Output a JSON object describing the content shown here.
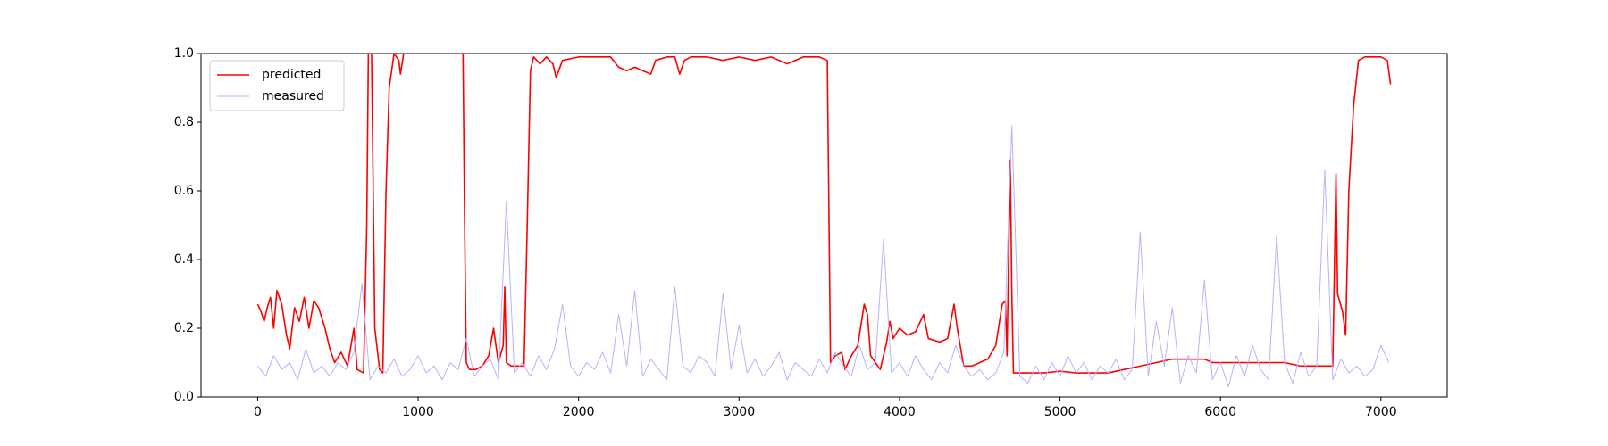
{
  "chart_data": {
    "type": "line",
    "xlim": [
      -353,
      7413
    ],
    "xticks": [
      0,
      1000,
      2000,
      3000,
      4000,
      5000,
      6000,
      7000
    ],
    "ylim": [
      0,
      1
    ],
    "yticks": [
      {
        "value": 0,
        "label": "0.0"
      },
      0.2,
      0.4,
      0.6,
      0.8,
      {
        "value": 1,
        "label": "1.0"
      }
    ],
    "legend": "upper left",
    "series": [
      {
        "name": "predicted",
        "color": "#ff0000",
        "x": [
          0,
          20,
          40,
          60,
          80,
          100,
          120,
          150,
          180,
          200,
          230,
          260,
          290,
          320,
          350,
          380,
          420,
          450,
          480,
          520,
          560,
          600,
          620,
          660,
          680,
          690,
          710,
          730,
          760,
          780,
          800,
          820,
          850,
          880,
          890,
          910,
          1280,
          1290,
          1300,
          1320,
          1360,
          1400,
          1440,
          1470,
          1500,
          1530,
          1540,
          1550,
          1580,
          1620,
          1660,
          1680,
          1700,
          1720,
          1760,
          1800,
          1840,
          1860,
          1900,
          2000,
          2100,
          2200,
          2250,
          2300,
          2350,
          2400,
          2450,
          2480,
          2550,
          2600,
          2630,
          2660,
          2700,
          2800,
          2900,
          3000,
          3100,
          3200,
          3300,
          3400,
          3500,
          3550,
          3570,
          3600,
          3640,
          3660,
          3700,
          3740,
          3780,
          3800,
          3820,
          3850,
          3880,
          3920,
          3940,
          3960,
          4000,
          4050,
          4100,
          4150,
          4180,
          4250,
          4300,
          4340,
          4360,
          4400,
          4450,
          4500,
          4550,
          4600,
          4640,
          4660,
          4670,
          4690,
          4700,
          4710,
          4800,
          4900,
          5000,
          5100,
          5200,
          5300,
          5400,
          5500,
          5600,
          5700,
          5800,
          5900,
          5950,
          6000,
          6100,
          6200,
          6300,
          6400,
          6500,
          6600,
          6700,
          6720,
          6730,
          6760,
          6780,
          6800,
          6830,
          6860,
          6900,
          6950,
          7000,
          7040,
          7060
        ],
        "values": [
          0.27,
          0.25,
          0.22,
          0.26,
          0.29,
          0.2,
          0.31,
          0.27,
          0.18,
          0.14,
          0.26,
          0.22,
          0.29,
          0.2,
          0.28,
          0.26,
          0.2,
          0.14,
          0.1,
          0.13,
          0.09,
          0.2,
          0.08,
          0.07,
          0.5,
          1.0,
          1.0,
          0.2,
          0.08,
          0.07,
          0.6,
          0.9,
          1.0,
          0.98,
          0.94,
          1.0,
          1.0,
          0.5,
          0.1,
          0.08,
          0.08,
          0.09,
          0.12,
          0.2,
          0.1,
          0.15,
          0.32,
          0.1,
          0.09,
          0.09,
          0.09,
          0.5,
          0.95,
          0.99,
          0.97,
          0.99,
          0.97,
          0.93,
          0.98,
          0.99,
          0.99,
          0.99,
          0.96,
          0.95,
          0.96,
          0.95,
          0.94,
          0.98,
          0.99,
          0.99,
          0.94,
          0.98,
          0.99,
          0.99,
          0.98,
          0.99,
          0.98,
          0.99,
          0.97,
          0.99,
          0.99,
          0.98,
          0.1,
          0.12,
          0.13,
          0.08,
          0.12,
          0.15,
          0.27,
          0.24,
          0.12,
          0.1,
          0.08,
          0.16,
          0.22,
          0.17,
          0.2,
          0.18,
          0.19,
          0.24,
          0.17,
          0.16,
          0.17,
          0.27,
          0.2,
          0.09,
          0.09,
          0.1,
          0.11,
          0.15,
          0.27,
          0.28,
          0.12,
          0.69,
          0.3,
          0.07,
          0.07,
          0.07,
          0.075,
          0.07,
          0.07,
          0.07,
          0.08,
          0.09,
          0.1,
          0.11,
          0.11,
          0.11,
          0.1,
          0.1,
          0.1,
          0.1,
          0.1,
          0.1,
          0.09,
          0.09,
          0.09,
          0.65,
          0.3,
          0.25,
          0.18,
          0.6,
          0.85,
          0.98,
          0.99,
          0.99,
          0.99,
          0.98,
          0.91
        ]
      },
      {
        "name": "measured",
        "color": "#b3b3ff",
        "x": [
          0,
          50,
          100,
          150,
          200,
          250,
          300,
          350,
          400,
          450,
          500,
          550,
          600,
          650,
          700,
          750,
          800,
          850,
          900,
          950,
          1000,
          1050,
          1100,
          1150,
          1200,
          1250,
          1300,
          1350,
          1400,
          1450,
          1500,
          1550,
          1600,
          1650,
          1700,
          1750,
          1800,
          1850,
          1900,
          1950,
          2000,
          2050,
          2100,
          2150,
          2200,
          2250,
          2300,
          2350,
          2400,
          2450,
          2500,
          2550,
          2600,
          2650,
          2700,
          2750,
          2800,
          2850,
          2900,
          2950,
          3000,
          3050,
          3100,
          3150,
          3200,
          3250,
          3300,
          3350,
          3400,
          3450,
          3500,
          3550,
          3600,
          3650,
          3700,
          3750,
          3800,
          3850,
          3900,
          3950,
          4000,
          4050,
          4100,
          4150,
          4200,
          4250,
          4300,
          4350,
          4400,
          4450,
          4500,
          4550,
          4600,
          4650,
          4700,
          4750,
          4800,
          4850,
          4900,
          4950,
          5000,
          5050,
          5100,
          5150,
          5200,
          5250,
          5300,
          5350,
          5400,
          5450,
          5500,
          5550,
          5600,
          5650,
          5700,
          5750,
          5800,
          5850,
          5900,
          5950,
          6000,
          6050,
          6100,
          6150,
          6200,
          6250,
          6300,
          6350,
          6400,
          6450,
          6500,
          6550,
          6600,
          6650,
          6700,
          6750,
          6800,
          6850,
          6900,
          6950,
          7000,
          7050
        ],
        "values": [
          0.09,
          0.06,
          0.12,
          0.08,
          0.1,
          0.05,
          0.14,
          0.07,
          0.09,
          0.06,
          0.1,
          0.08,
          0.13,
          0.33,
          0.05,
          0.09,
          0.07,
          0.11,
          0.06,
          0.08,
          0.12,
          0.07,
          0.09,
          0.05,
          0.1,
          0.08,
          0.17,
          0.06,
          0.09,
          0.11,
          0.05,
          0.57,
          0.07,
          0.1,
          0.06,
          0.12,
          0.08,
          0.14,
          0.27,
          0.09,
          0.06,
          0.1,
          0.08,
          0.13,
          0.07,
          0.24,
          0.09,
          0.31,
          0.06,
          0.11,
          0.08,
          0.05,
          0.32,
          0.09,
          0.07,
          0.12,
          0.1,
          0.06,
          0.3,
          0.08,
          0.21,
          0.07,
          0.11,
          0.06,
          0.09,
          0.13,
          0.05,
          0.1,
          0.08,
          0.06,
          0.11,
          0.07,
          0.13,
          0.09,
          0.06,
          0.15,
          0.08,
          0.1,
          0.46,
          0.07,
          0.1,
          0.06,
          0.12,
          0.08,
          0.05,
          0.1,
          0.07,
          0.15,
          0.09,
          0.06,
          0.08,
          0.05,
          0.07,
          0.13,
          0.79,
          0.06,
          0.04,
          0.09,
          0.05,
          0.1,
          0.06,
          0.12,
          0.07,
          0.1,
          0.05,
          0.09,
          0.07,
          0.11,
          0.05,
          0.08,
          0.48,
          0.06,
          0.22,
          0.09,
          0.26,
          0.04,
          0.12,
          0.07,
          0.34,
          0.05,
          0.1,
          0.03,
          0.12,
          0.06,
          0.15,
          0.08,
          0.05,
          0.47,
          0.1,
          0.04,
          0.13,
          0.06,
          0.09,
          0.66,
          0.05,
          0.11,
          0.07,
          0.09,
          0.06,
          0.08,
          0.15,
          0.1
        ]
      }
    ]
  }
}
